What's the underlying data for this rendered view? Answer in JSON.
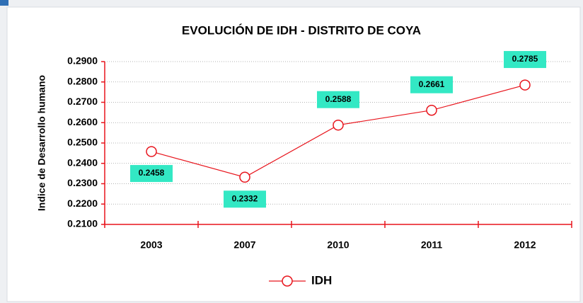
{
  "chart_data": {
    "type": "line",
    "title": "EVOLUCIÓN  DE IDH - DISTRITO DE COYA",
    "y_label": "Indice de Desarrollo humano",
    "categories": [
      "2003",
      "2007",
      "2010",
      "2011",
      "2012"
    ],
    "series": [
      {
        "name": "IDH",
        "color": "#e8141c",
        "values": [
          0.2458,
          0.2332,
          0.2588,
          0.2661,
          0.2785
        ]
      }
    ],
    "ylim": [
      0.21,
      0.29
    ],
    "yticks": [
      {
        "value": 0.21,
        "label": "0.2100"
      },
      {
        "value": 0.22,
        "label": "0.2200"
      },
      {
        "value": 0.23,
        "label": "0.2300"
      },
      {
        "value": 0.24,
        "label": "0.2400"
      },
      {
        "value": 0.25,
        "label": "0.2500"
      },
      {
        "value": 0.26,
        "label": "0.2600"
      },
      {
        "value": 0.27,
        "label": "0.2700"
      },
      {
        "value": 0.28,
        "label": "0.2800"
      },
      {
        "value": 0.29,
        "label": "0.2900"
      }
    ],
    "grid": true,
    "label_color": "#33e8c4"
  }
}
